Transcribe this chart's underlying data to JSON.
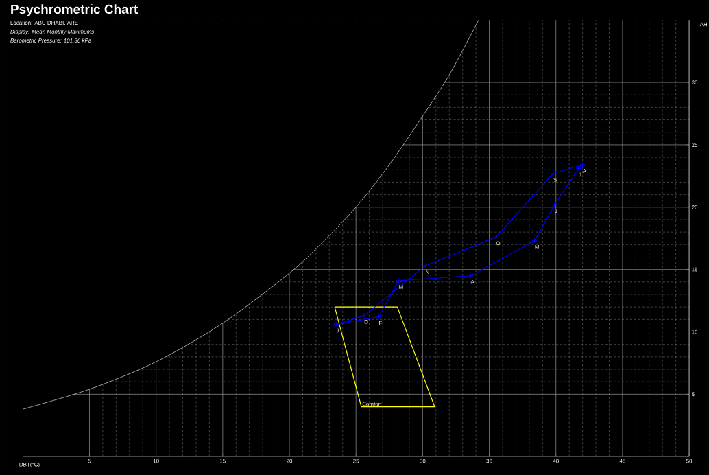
{
  "chart_data": {
    "type": "line",
    "title": "Psychrometric Chart",
    "subtitle": "Location: ABU DHABI, ARE",
    "annotations": [
      "Display: Mean Monthly Maximums",
      "Barometric Pressure: 101.36 kPa"
    ],
    "xlabel": "DBT(°C)",
    "ylabel": "AH",
    "xlim": [
      0,
      50
    ],
    "ylim": [
      0,
      35
    ],
    "xticks": [
      5,
      10,
      15,
      20,
      25,
      30,
      35,
      40,
      45,
      50
    ],
    "yticks": [
      5,
      10,
      15,
      20,
      25,
      30
    ],
    "grid": true,
    "series": [
      {
        "color": "#c8c8c8",
        "x": [
          0,
          5,
          10,
          15,
          20,
          22.5,
          25,
          27.5,
          30,
          32,
          34.2
        ],
        "values": [
          3.8,
          5.4,
          7.6,
          10.7,
          14.7,
          17.2,
          20.0,
          23.4,
          27.3,
          30.6,
          35
        ]
      },
      {
        "name": "Comfort",
        "color": "#ffff00",
        "x": [
          23.4,
          28.1,
          30.9,
          25.4,
          23.4
        ],
        "values": [
          12,
          12,
          4,
          4,
          12
        ]
      },
      {
        "color": "#0000ff",
        "marker": "cross",
        "x": [
          23.5,
          26.7,
          28.2,
          33.6,
          38.4,
          39.9,
          41.7,
          42.0,
          39.8,
          35.5,
          30.2,
          25.6,
          23.5
        ],
        "values": [
          10.6,
          11.2,
          14.1,
          14.5,
          17.3,
          20.2,
          23.1,
          23.4,
          22.7,
          17.6,
          15.3,
          11.3,
          10.6
        ],
        "value_labels": [
          "J",
          "F",
          "M",
          "A",
          "M",
          "J",
          "J",
          "A",
          "S",
          "O",
          "N",
          "D",
          null
        ]
      }
    ]
  }
}
